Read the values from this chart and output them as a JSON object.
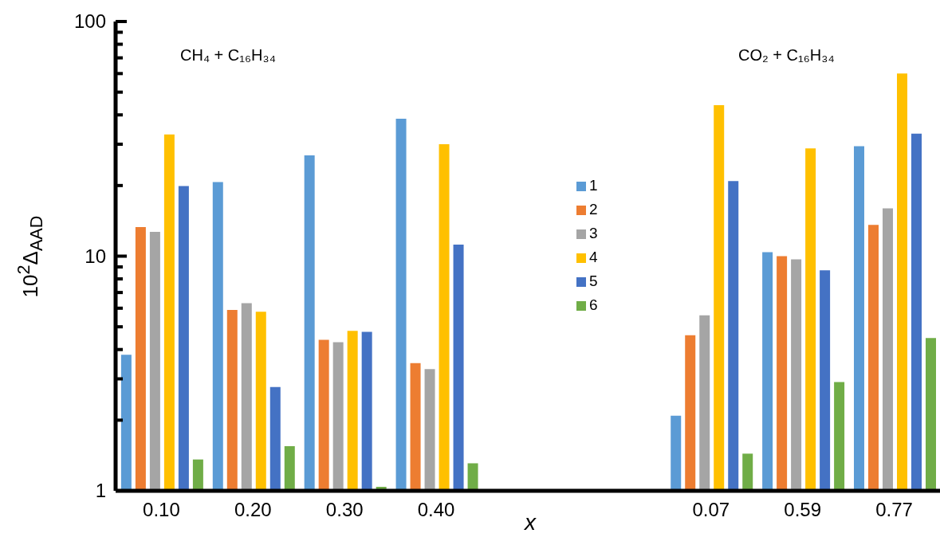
{
  "chart_data": {
    "type": "bar",
    "xlabel": "x",
    "ylabel": "10$^{2}$Δ$_{AAD}$",
    "categories": [
      "0.10",
      "0.20",
      "0.30",
      "0.40",
      null,
      null,
      "0.07",
      "0.59",
      "0.77"
    ],
    "series": [
      {
        "name": "1",
        "color": "#5b9bd5",
        "values": [
          3.8,
          20.7,
          26.9,
          38.5,
          null,
          null,
          2.09,
          10.4,
          29.4
        ]
      },
      {
        "name": "2",
        "color": "#ed7d31",
        "values": [
          13.3,
          5.9,
          4.4,
          3.5,
          null,
          null,
          4.6,
          10.0,
          13.6
        ]
      },
      {
        "name": "3",
        "color": "#a5a5a5",
        "values": [
          12.7,
          6.3,
          4.3,
          3.3,
          null,
          null,
          5.6,
          9.7,
          16.0
        ]
      },
      {
        "name": "4",
        "color": "#ffc000",
        "values": [
          33,
          5.8,
          4.8,
          30,
          null,
          null,
          44,
          28.8,
          60
        ]
      },
      {
        "name": "5",
        "color": "#4472c4",
        "values": [
          19.9,
          2.77,
          4.76,
          11.2,
          null,
          null,
          20.9,
          8.7,
          33.3
        ]
      },
      {
        "name": "6",
        "color": "#70ad47",
        "values": [
          1.36,
          1.55,
          1.04,
          1.31,
          null,
          null,
          1.44,
          2.91,
          4.48
        ]
      }
    ],
    "log": true,
    "ylim": [
      1,
      100
    ],
    "yticks": [
      1,
      {
        "value": 2,
        "label": null
      },
      {
        "value": 3,
        "label": null
      },
      {
        "value": 4,
        "label": null
      },
      {
        "value": 5,
        "label": null
      },
      {
        "value": 6,
        "label": null
      },
      {
        "value": 7,
        "label": null
      },
      {
        "value": 8,
        "label": null
      },
      {
        "value": 9,
        "label": null
      },
      10,
      {
        "value": 20,
        "label": null
      },
      {
        "value": 30,
        "label": null
      },
      {
        "value": 40,
        "label": null
      },
      {
        "value": 50,
        "label": null
      },
      {
        "value": 60,
        "label": null
      },
      {
        "value": 70,
        "label": null
      },
      {
        "value": 80,
        "label": null
      },
      {
        "value": 90,
        "label": null
      },
      100
    ],
    "grid": false,
    "legend": "center",
    "annotations": [
      "CH₄ + C₁₆H₃₄",
      "CO₂ + C₁₆H₃₄"
    ]
  }
}
